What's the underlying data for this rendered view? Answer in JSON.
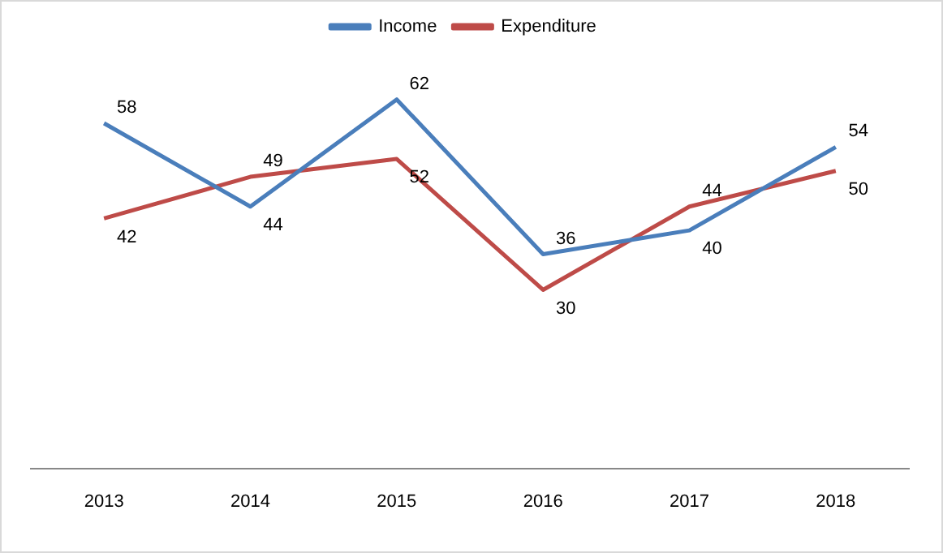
{
  "chart_data": {
    "type": "line",
    "categories": [
      "2013",
      "2014",
      "2015",
      "2016",
      "2017",
      "2018"
    ],
    "series": [
      {
        "name": "Income",
        "color": "#4a7ebb",
        "values": [
          58,
          44,
          62,
          36,
          40,
          54
        ]
      },
      {
        "name": "Expenditure",
        "color": "#be4b48",
        "values": [
          42,
          49,
          52,
          30,
          44,
          50
        ]
      }
    ],
    "data_labels": true,
    "legend": "top",
    "grid": false,
    "marker": "none",
    "line_style": "solid"
  }
}
